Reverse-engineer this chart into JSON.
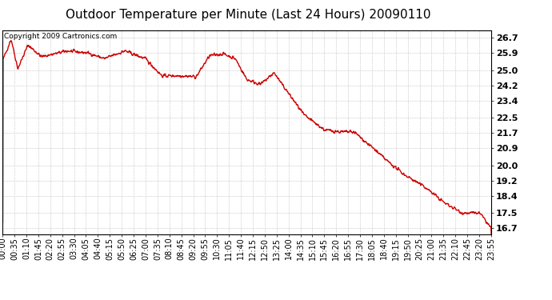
{
  "title": "Outdoor Temperature per Minute (Last 24 Hours) 20090110",
  "copyright_text": "Copyright 2009 Cartronics.com",
  "line_color": "#cc0000",
  "bg_color": "#ffffff",
  "plot_bg_color": "#ffffff",
  "grid_color": "#aaaaaa",
  "yticks": [
    16.7,
    17.5,
    18.4,
    19.2,
    20.0,
    20.9,
    21.7,
    22.5,
    23.4,
    24.2,
    25.0,
    25.9,
    26.7
  ],
  "ylim": [
    16.4,
    27.1
  ],
  "xtick_labels": [
    "00:00",
    "00:35",
    "01:10",
    "01:45",
    "02:20",
    "02:55",
    "03:30",
    "04:05",
    "04:40",
    "05:15",
    "05:50",
    "06:25",
    "07:00",
    "07:35",
    "08:10",
    "08:45",
    "09:20",
    "09:55",
    "10:30",
    "11:05",
    "11:40",
    "12:15",
    "12:50",
    "13:25",
    "14:00",
    "14:35",
    "15:10",
    "15:45",
    "16:20",
    "16:55",
    "17:30",
    "18:05",
    "18:40",
    "19:15",
    "19:50",
    "20:25",
    "21:00",
    "21:35",
    "22:10",
    "22:45",
    "23:20",
    "23:55"
  ],
  "title_fontsize": 11,
  "copyright_fontsize": 6.5,
  "tick_fontsize": 7,
  "ytick_fontsize": 8,
  "line_width": 1.0
}
